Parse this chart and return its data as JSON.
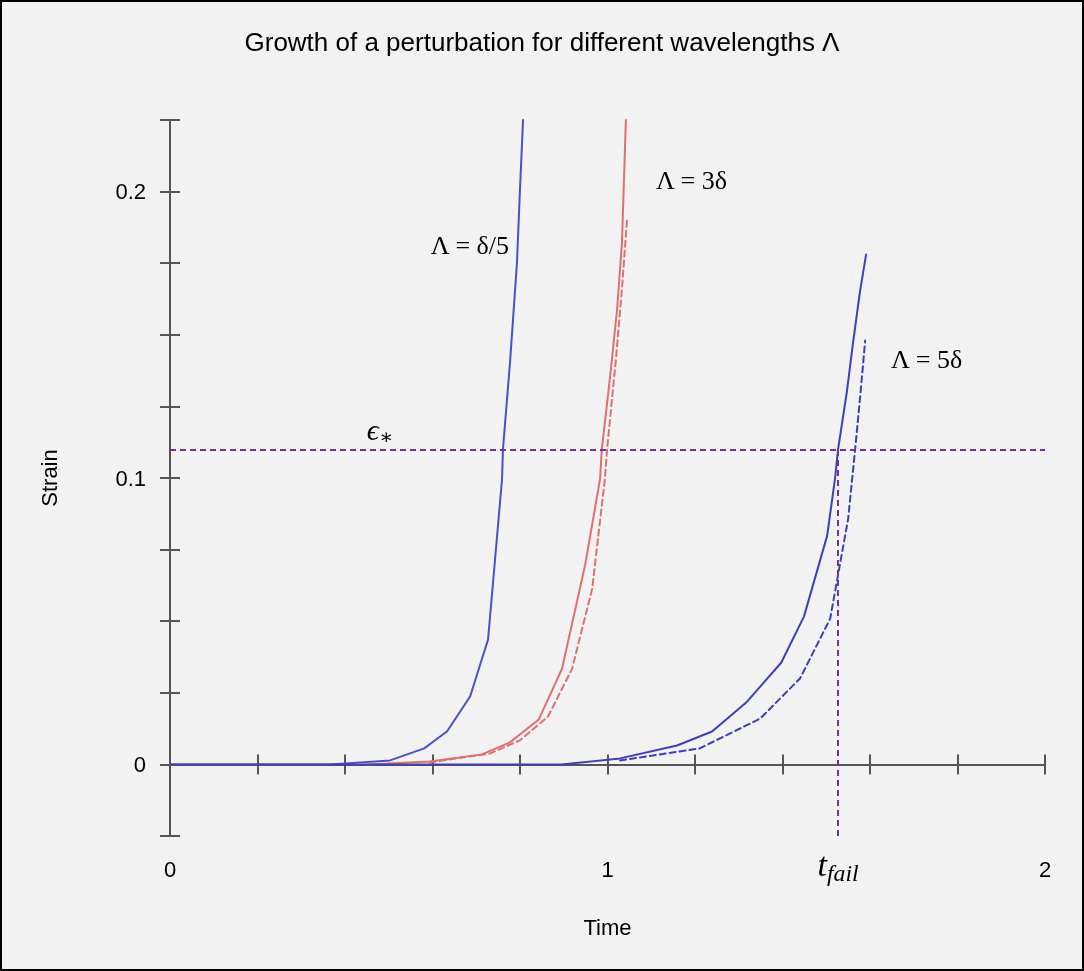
{
  "chart_data": {
    "type": "line",
    "title": "Growth of a perturbation for different wavelengths Λ",
    "xlabel": "Time",
    "ylabel": "Strain",
    "xlim": [
      0,
      2
    ],
    "ylim": [
      -0.025,
      0.225
    ],
    "xticks": [
      0,
      {
        "value": 0.2,
        "label": null
      },
      {
        "value": 0.4,
        "label": null
      },
      {
        "value": 0.6,
        "label": null
      },
      {
        "value": 0.8,
        "label": null
      },
      1,
      {
        "value": 1.2,
        "label": null
      },
      {
        "value": 1.4,
        "label": null
      },
      {
        "value": 1.6,
        "label": null
      },
      {
        "value": 1.8,
        "label": null
      },
      2
    ],
    "yticks": [
      {
        "value": -0.025,
        "label": null
      },
      0,
      {
        "value": 0.025,
        "label": null
      },
      {
        "value": 0.05,
        "label": null
      },
      {
        "value": 0.075,
        "label": null
      },
      0.1,
      {
        "value": 0.125,
        "label": null
      },
      {
        "value": 0.15,
        "label": null
      },
      {
        "value": 0.175,
        "label": null
      },
      0.2,
      {
        "value": 0.225,
        "label": null
      }
    ],
    "ref_lines": [
      {
        "axis": "y",
        "value": 0.11,
        "label": "ϵ$_{∗}$",
        "color": "#7030a0",
        "line_style": "dashed"
      },
      {
        "axis": "x",
        "value": 1.527,
        "label": "t$_{fail}$",
        "color": "#7030a0",
        "line_style": "dashed"
      }
    ],
    "series": [
      {
        "name": "Λ = δ/5",
        "color": "#4a50c8",
        "line_style": "solid",
        "x": [
          0,
          0.366,
          0.503,
          0.581,
          0.633,
          0.686,
          0.727,
          0.759,
          0.761,
          0.777,
          0.793,
          0.8,
          0.807
        ],
        "values": [
          0,
          0,
          0.0014,
          0.0056,
          0.0115,
          0.0237,
          0.0436,
          0.0997,
          0.11,
          0.14,
          0.175,
          0.201,
          0.225
        ]
      },
      {
        "name": "Λ = 3δ",
        "color": "#e07070",
        "line_style": "solid",
        "x": [
          0.45,
          0.594,
          0.713,
          0.777,
          0.843,
          0.896,
          0.949,
          0.983,
          0.987,
          1.006,
          1.022,
          1.033,
          1.042
        ],
        "values": [
          0,
          0.001,
          0.0035,
          0.0077,
          0.0157,
          0.0334,
          0.0697,
          0.0997,
          0.11,
          0.1355,
          0.159,
          0.182,
          0.225
        ]
      },
      {
        "color": "#e07070",
        "line_style": "dashed",
        "x": [
          0.594,
          0.731,
          0.8,
          0.864,
          0.919,
          0.965,
          0.994,
          0.999,
          1.019,
          1.033,
          1.045
        ],
        "values": [
          0.0007,
          0.0038,
          0.0084,
          0.0167,
          0.0334,
          0.0613,
          0.0997,
          0.11,
          0.141,
          0.166,
          0.191
        ]
      },
      {
        "name": "Λ = 5δ",
        "color": "#3c40b8",
        "line_style": "solid",
        "x": [
          0,
          0.896,
          1.029,
          1.159,
          1.239,
          1.317,
          1.397,
          1.449,
          1.502,
          1.52,
          1.527,
          1.547,
          1.561,
          1.577,
          1.591
        ],
        "values": [
          0,
          0,
          0.0021,
          0.0066,
          0.0115,
          0.0216,
          0.0355,
          0.0516,
          0.0798,
          0.0997,
          0.11,
          0.13,
          0.147,
          0.165,
          0.178
        ]
      },
      {
        "color": "#3c40b8",
        "line_style": "dashed",
        "x": [
          1.029,
          1.211,
          1.349,
          1.44,
          1.509,
          1.55,
          1.566,
          1.577,
          1.589
        ],
        "values": [
          0.0014,
          0.0056,
          0.016,
          0.03,
          0.0509,
          0.0857,
          0.11,
          0.1275,
          0.148
        ]
      }
    ]
  }
}
